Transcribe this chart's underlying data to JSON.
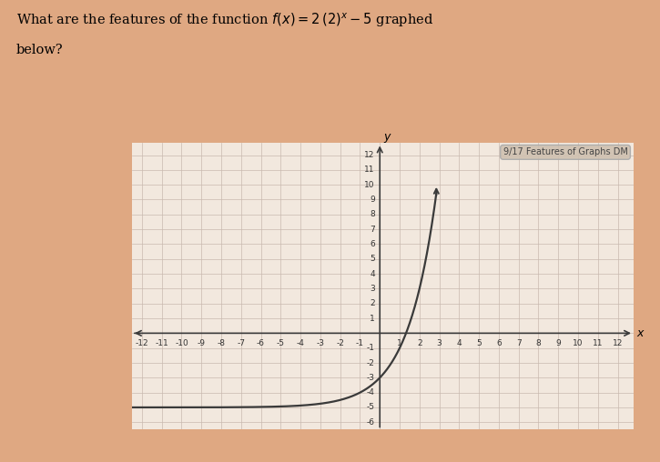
{
  "title_line1": "What are the features of the function $f(x) = 2\\,(2)^x - 5$ graphed",
  "title_line2": "below?",
  "watermark": "9/17 Features of Graphs DM",
  "background_color": "#dfa882",
  "plot_bg_color": "#f2e8de",
  "grid_color": "#c9bab0",
  "curve_color": "#3a3a3a",
  "axis_color": "#3a3a3a",
  "tick_label_color": "#333333",
  "xlim": [
    -12.5,
    12.8
  ],
  "ylim": [
    -6.5,
    12.8
  ],
  "xticks": [
    -12,
    -11,
    -10,
    -9,
    -8,
    -7,
    -6,
    -5,
    -4,
    -3,
    -2,
    -1,
    2,
    3,
    4,
    5,
    6,
    7,
    8,
    9,
    10,
    11,
    12
  ],
  "yticks": [
    -6,
    -5,
    -4,
    -3,
    -2,
    -1,
    1,
    2,
    3,
    4,
    5,
    6,
    7,
    8,
    9,
    10,
    11,
    12
  ],
  "xlabel": "x",
  "ylabel": "y",
  "func_a": 2,
  "func_b": 2,
  "func_c": -5,
  "x_range_min": -12.5,
  "x_range_max": 2.85,
  "watermark_bg": "#cfc0b0",
  "watermark_edge": "#aaaaaa"
}
